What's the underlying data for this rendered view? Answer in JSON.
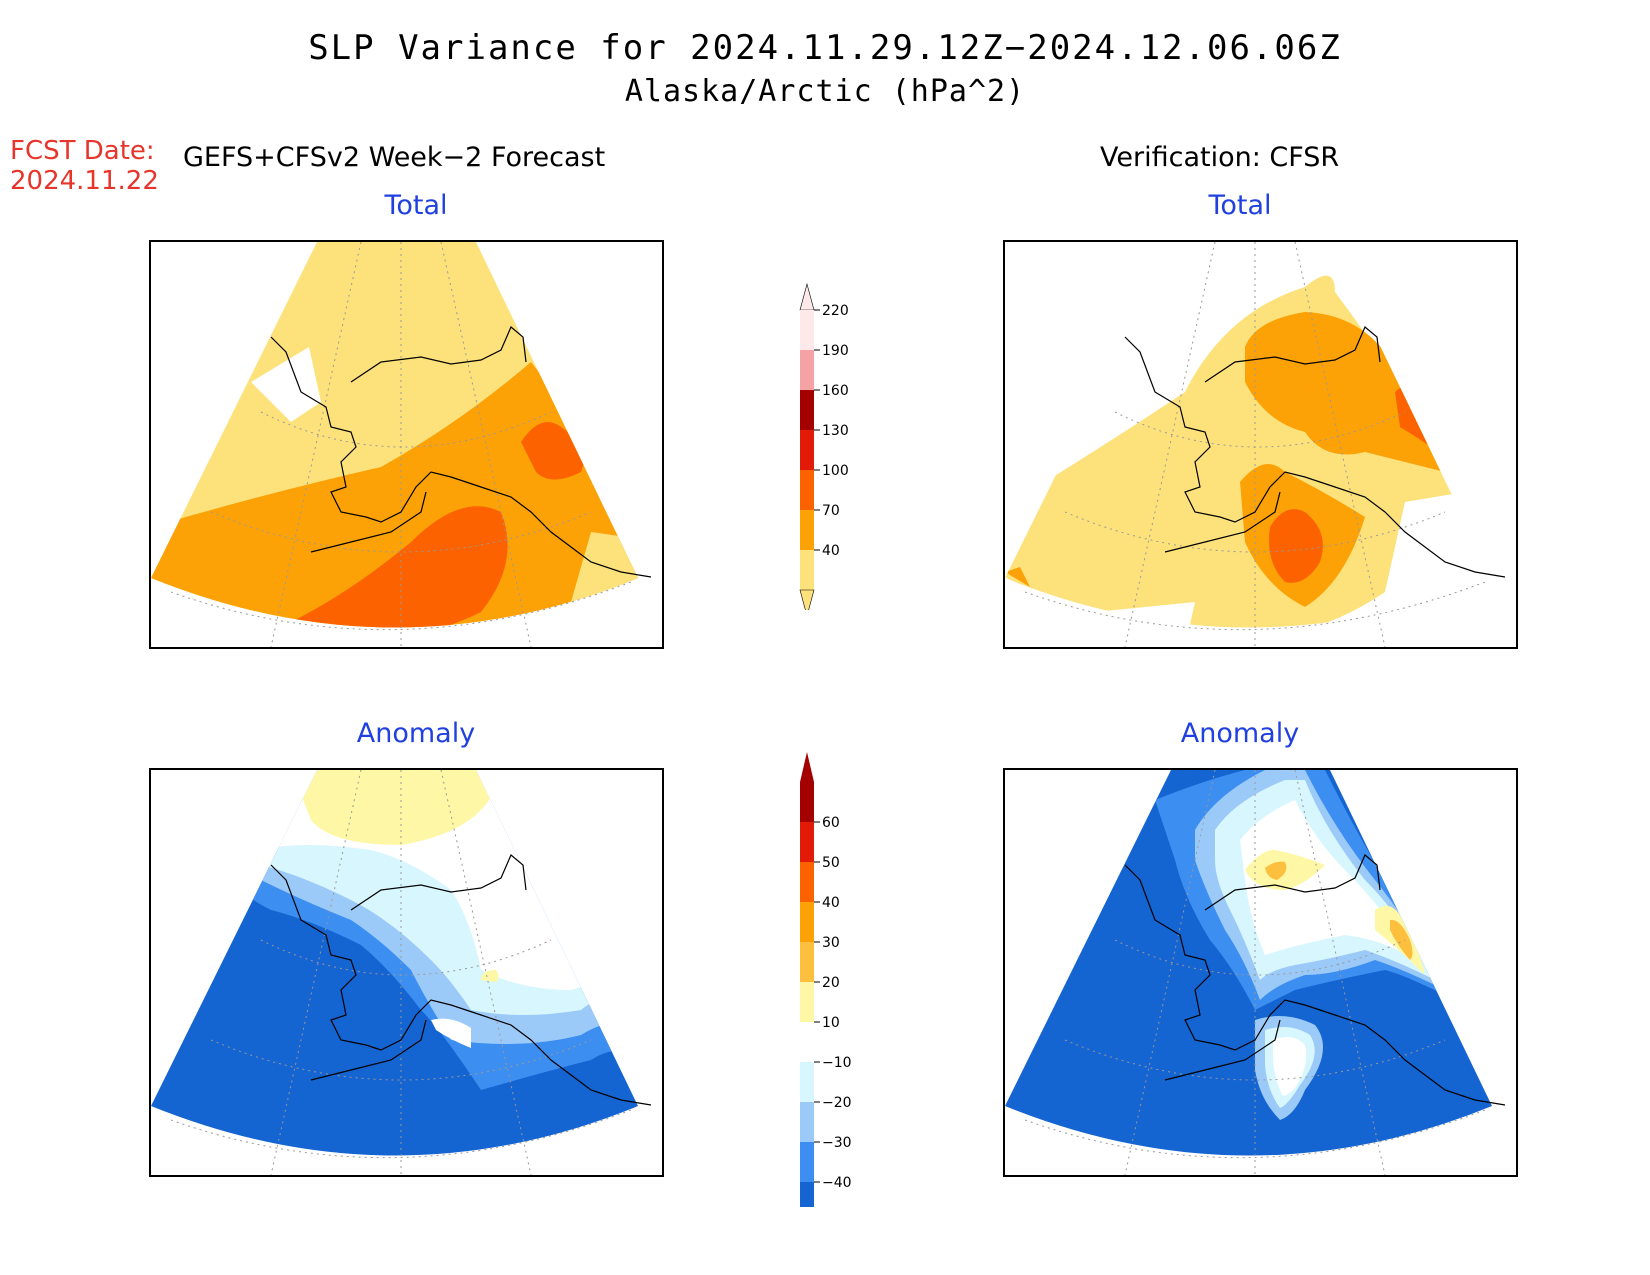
{
  "header": {
    "title": "SLP Variance for 2024.11.29.12Z−2024.12.06.06Z",
    "subtitle": "Alaska/Arctic (hPa^2)",
    "fcst_date_label": "FCST Date:",
    "fcst_date_value": "2024.11.22",
    "left_column": "GEFS+CFSv2 Week−2 Forecast",
    "right_column": "Verification: CFSR"
  },
  "panels": {
    "top_left_title": "Total",
    "top_right_title": "Total",
    "bottom_left_title": "Anomaly",
    "bottom_right_title": "Anomaly"
  },
  "colorbars": {
    "total": {
      "labels": [
        "40",
        "70",
        "100",
        "130",
        "160",
        "190",
        "220"
      ],
      "colors": [
        "#fde27c",
        "#fca207",
        "#fc6300",
        "#e11b07",
        "#a50000",
        "#f4a2a4",
        "#fde9ea"
      ]
    },
    "anomaly": {
      "labels": [
        "−40",
        "−30",
        "−20",
        "−10",
        "10",
        "20",
        "30",
        "40",
        "50",
        "60"
      ],
      "colors": [
        "#1464d2",
        "#3c8ef0",
        "#9ccaf8",
        "#d8f6fe",
        "#ffffff",
        "#fef8a6",
        "#fdbf3e",
        "#fca207",
        "#fc6300",
        "#e11b07",
        "#a50000"
      ]
    }
  },
  "colors": {
    "total_low": "#fde27c",
    "total_mid": "#fca207",
    "total_high": "#fc6300",
    "anom_deep": "#1464d2",
    "anom_mid": "#3c8ef0",
    "anom_light": "#9ccaf8",
    "anom_faint": "#d8f6fe",
    "anom_pos1": "#fef8a6",
    "anom_pos2": "#fdbf3e",
    "title_blue": "#2040e0",
    "fcst_red": "#e8352b"
  }
}
